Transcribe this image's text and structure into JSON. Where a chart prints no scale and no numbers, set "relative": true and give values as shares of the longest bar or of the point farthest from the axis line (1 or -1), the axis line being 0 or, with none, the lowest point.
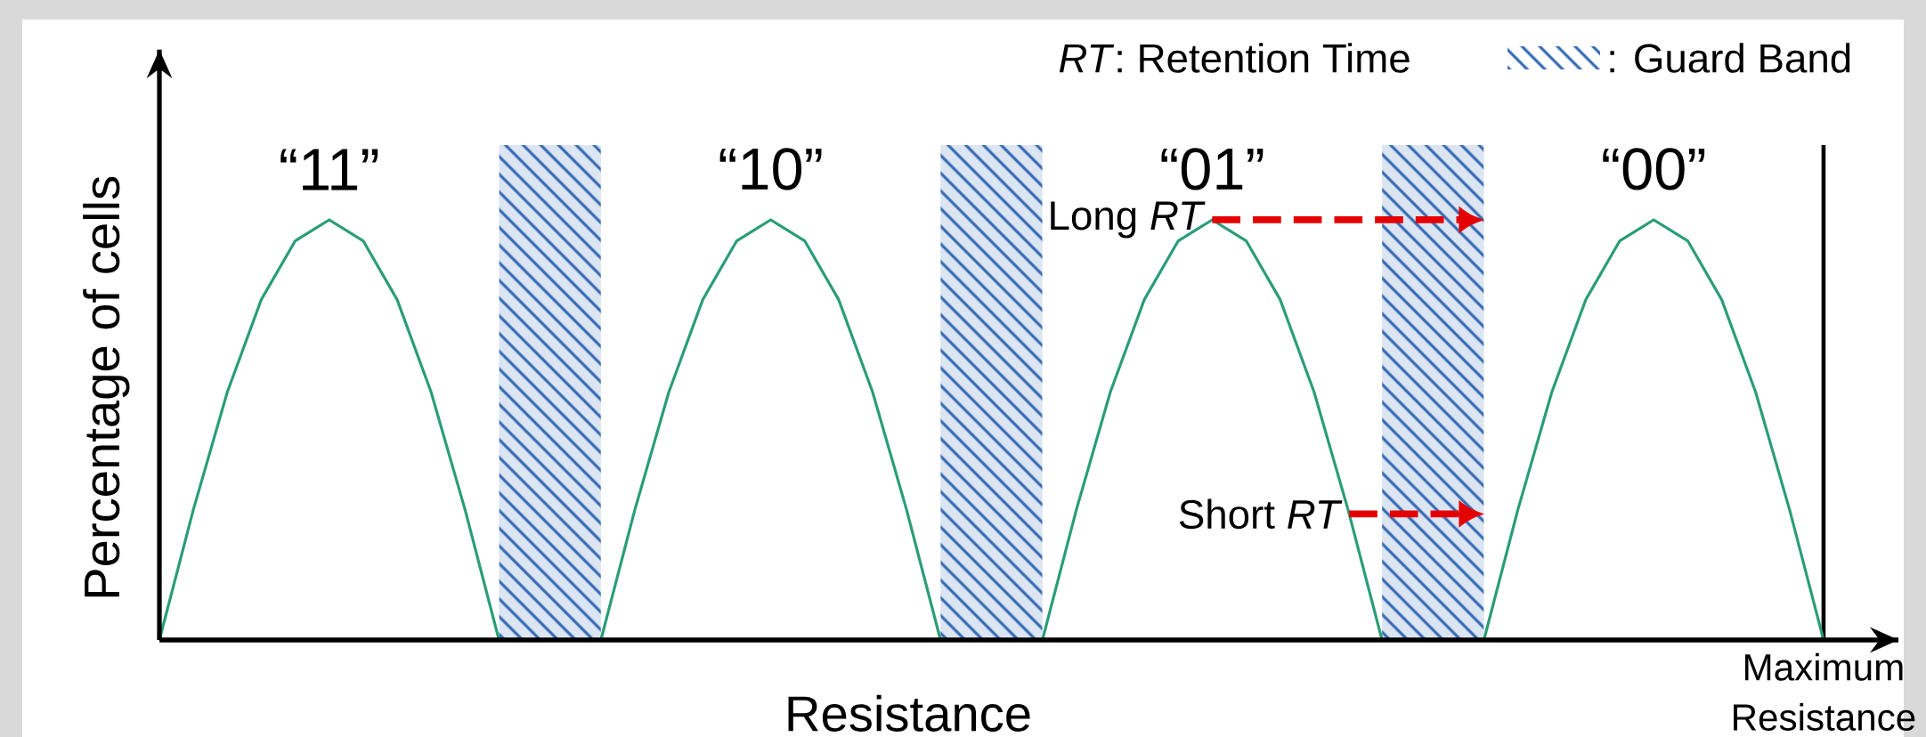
{
  "chart_data": {
    "type": "line",
    "relative": true,
    "xlabel": "Resistance",
    "ylabel": "Percentage of cells",
    "categories": [
      null,
      null,
      null,
      null,
      null,
      null,
      null,
      null,
      null,
      null,
      null,
      null,
      null,
      null,
      null,
      null,
      null,
      null,
      null,
      null,
      null,
      null,
      null,
      null,
      null,
      null,
      null,
      null,
      null,
      null,
      null,
      null,
      null,
      null,
      null,
      null,
      null,
      null,
      null,
      null,
      null,
      null,
      null,
      null,
      null,
      null,
      null,
      null,
      null,
      null
    ],
    "series": [
      {
        "color": "#2a9d78",
        "values": [
          0,
          0.31,
          0.59,
          0.81,
          0.95,
          1,
          0.95,
          0.81,
          0.59,
          0.31,
          0,
          0,
          0,
          0,
          0.31,
          0.59,
          0.81,
          0.95,
          1,
          0.95,
          0.81,
          0.59,
          0.31,
          0,
          0,
          0,
          0,
          0.31,
          0.59,
          0.81,
          0.95,
          1,
          0.95,
          0.81,
          0.59,
          0.31,
          0,
          0,
          0,
          0,
          0.31,
          0.59,
          0.81,
          0.95,
          1,
          0.95,
          0.81,
          0.59,
          0.31,
          0
        ]
      }
    ],
    "marker": "none",
    "line_style": "solid",
    "annotations": [
      "*RT*: Retention Time",
      ": Guard Band",
      "“11”",
      "“10”",
      "“01”",
      "“00”",
      "Long *RT*",
      "Short *RT*",
      "Maximum Resistance"
    ]
  }
}
